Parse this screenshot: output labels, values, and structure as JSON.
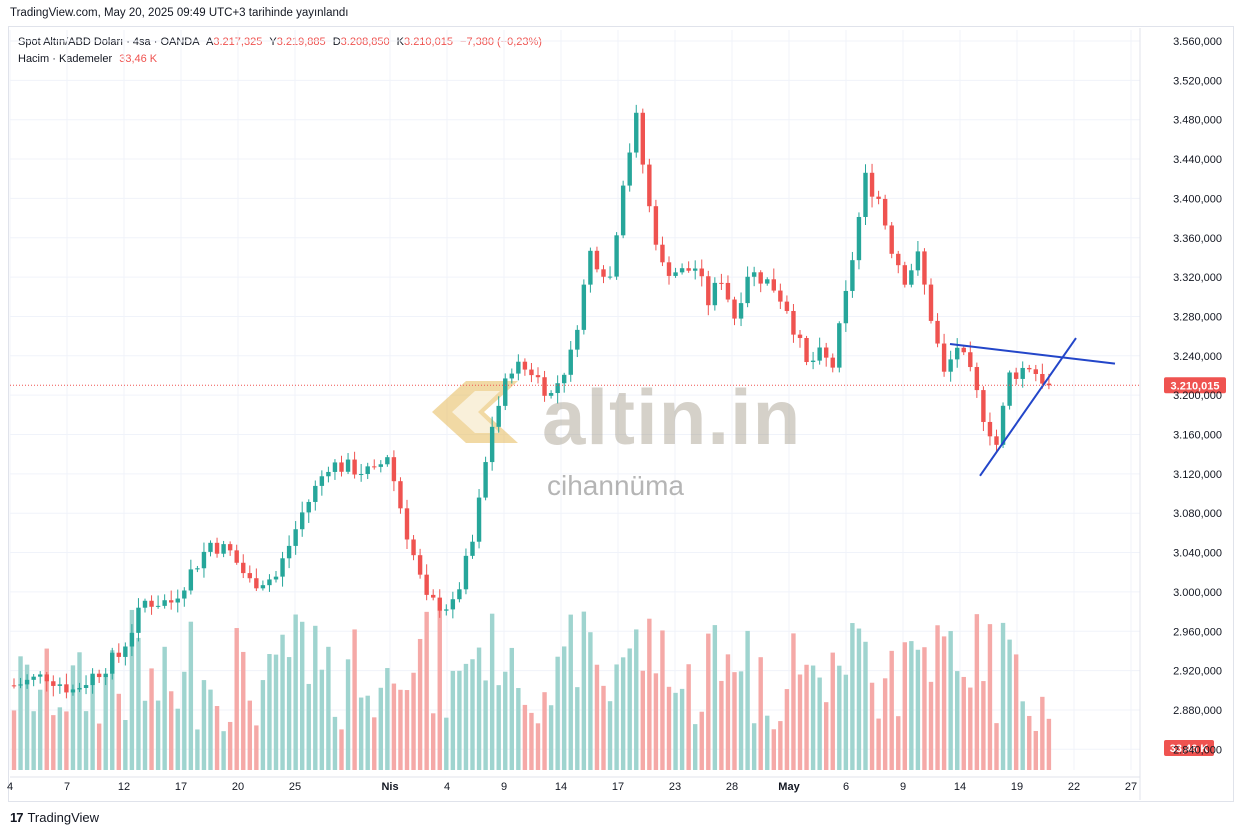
{
  "header": {
    "published_note": "TradingView.com, May 20, 2025 09:49 UTC+3 tarihinde yayınlandı"
  },
  "legend": {
    "symbol": "Spot Altın/ABD Doları · 4sa · OANDA",
    "open_label": "A",
    "open": "3.217,325",
    "high_label": "Y",
    "high": "3.219,885",
    "low_label": "D",
    "low": "3.208,850",
    "close_label": "K",
    "close": "3.210,015",
    "change": "−7,380 (−0,23%)",
    "volume_label": "Hacim · Kademeler",
    "volume_value": "33,46 K"
  },
  "watermark": {
    "brand": "altin.in",
    "sub": "cihannüma"
  },
  "footer": {
    "brand": "TradingView"
  },
  "colors": {
    "up": "#26a69a",
    "down": "#ef5350",
    "vol_up": "#9fd4cf",
    "vol_down": "#f5a9a7",
    "trendline": "#2346c9",
    "price_line": "#ef5350"
  },
  "chart_data": {
    "type": "candlestick",
    "title": "Spot Altın/ABD Doları · 4sa · OANDA",
    "y_ticks": [
      "3.560,000",
      "3.520,000",
      "3.480,000",
      "3.440,000",
      "3.400,000",
      "3.360,000",
      "3.320,000",
      "3.280,000",
      "3.240,000",
      "3.200,000",
      "3.160,000",
      "3.120,000",
      "3.080,000",
      "3.040,000",
      "3.000,000",
      "2.960,000",
      "2.920,000",
      "2.880,000",
      "2.840,000"
    ],
    "y_range": [
      2838,
      3570
    ],
    "x_ticks": [
      "4",
      "7",
      "12",
      "17",
      "20",
      "25",
      "Nis",
      "4",
      "9",
      "14",
      "17",
      "23",
      "28",
      "May",
      "6",
      "9",
      "14",
      "19",
      "22",
      "27"
    ],
    "last_price": 3210.015,
    "last_price_label": "3.210,015",
    "last_volume_label": "33,46 K",
    "volume_max": 108,
    "anchors": [
      [
        0,
        2905
      ],
      [
        5,
        2915
      ],
      [
        9,
        2900
      ],
      [
        12,
        2915
      ],
      [
        16,
        2935
      ],
      [
        20,
        2990
      ],
      [
        24,
        2990
      ],
      [
        28,
        3030
      ],
      [
        30,
        3050
      ],
      [
        33,
        3040
      ],
      [
        36,
        3010
      ],
      [
        40,
        3015
      ],
      [
        44,
        3080
      ],
      [
        48,
        3130
      ],
      [
        52,
        3125
      ],
      [
        55,
        3120
      ],
      [
        57,
        3140
      ],
      [
        60,
        3060
      ],
      [
        63,
        2990
      ],
      [
        67,
        2985
      ],
      [
        70,
        3050
      ],
      [
        73,
        3170
      ],
      [
        76,
        3230
      ],
      [
        79,
        3225
      ],
      [
        82,
        3200
      ],
      [
        85,
        3240
      ],
      [
        88,
        3345
      ],
      [
        91,
        3320
      ],
      [
        93,
        3420
      ],
      [
        95,
        3480
      ],
      [
        97,
        3390
      ],
      [
        99,
        3330
      ],
      [
        102,
        3325
      ],
      [
        104,
        3330
      ],
      [
        106,
        3295
      ],
      [
        108,
        3320
      ],
      [
        110,
        3280
      ],
      [
        112,
        3325
      ],
      [
        114,
        3320
      ],
      [
        116,
        3310
      ],
      [
        118,
        3290
      ],
      [
        121,
        3230
      ],
      [
        123,
        3240
      ],
      [
        125,
        3230
      ],
      [
        127,
        3300
      ],
      [
        130,
        3420
      ],
      [
        132,
        3400
      ],
      [
        134,
        3350
      ],
      [
        136,
        3320
      ],
      [
        138,
        3340
      ],
      [
        140,
        3280
      ],
      [
        142,
        3220
      ],
      [
        144,
        3250
      ],
      [
        146,
        3220
      ],
      [
        148,
        3180
      ],
      [
        150,
        3150
      ],
      [
        152,
        3220
      ],
      [
        155,
        3230
      ],
      [
        158,
        3210
      ]
    ],
    "annotations": {
      "triangle_upper": [
        [
          3252
        ],
        [
          3232
        ]
      ],
      "triangle_lower": [
        [
          3118
        ],
        [
          3258
        ]
      ]
    }
  }
}
